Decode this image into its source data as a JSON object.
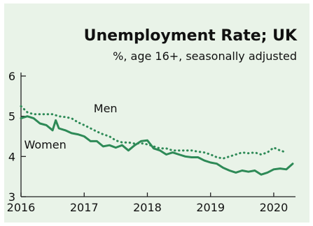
{
  "chart_data": {
    "type": "line",
    "title": "Unemployment Rate; UK",
    "subtitle": "%, age 16+, seasonally adjusted",
    "xlabel": "",
    "ylabel": "",
    "xlim": [
      2016,
      2020.3
    ],
    "ylim": [
      3,
      6
    ],
    "x_ticks": [
      2016,
      2017,
      2018,
      2019,
      2020
    ],
    "y_ticks": [
      3,
      4,
      5,
      6
    ],
    "grid": false,
    "legend": "inline labels",
    "series": [
      {
        "name": "Men",
        "style": "dotted",
        "color": "#2e8a57",
        "x": [
          2016.0,
          2016.1,
          2016.2,
          2016.3,
          2016.4,
          2016.5,
          2016.6,
          2016.7,
          2016.8,
          2016.9,
          2017.0,
          2017.1,
          2017.2,
          2017.3,
          2017.4,
          2017.5,
          2017.6,
          2017.7,
          2017.8,
          2017.9,
          2018.0,
          2018.1,
          2018.2,
          2018.3,
          2018.4,
          2018.5,
          2018.6,
          2018.7,
          2018.8,
          2018.9,
          2019.0,
          2019.1,
          2019.2,
          2019.3,
          2019.4,
          2019.5,
          2019.6,
          2019.7,
          2019.8,
          2019.9,
          2020.0,
          2020.1,
          2020.2
        ],
        "values": [
          5.25,
          5.1,
          5.05,
          5.05,
          5.05,
          5.05,
          5.0,
          4.98,
          4.95,
          4.85,
          4.78,
          4.7,
          4.62,
          4.55,
          4.5,
          4.4,
          4.35,
          4.35,
          4.32,
          4.33,
          4.3,
          4.25,
          4.2,
          4.2,
          4.15,
          4.15,
          4.15,
          4.15,
          4.12,
          4.1,
          4.05,
          3.98,
          3.95,
          4.0,
          4.05,
          4.1,
          4.08,
          4.1,
          4.05,
          4.1,
          4.22,
          4.15,
          4.1
        ]
      },
      {
        "name": "Women",
        "style": "solid",
        "color": "#2e8a57",
        "x": [
          2016.0,
          2016.1,
          2016.2,
          2016.3,
          2016.4,
          2016.5,
          2016.55,
          2016.6,
          2016.7,
          2016.8,
          2016.9,
          2017.0,
          2017.1,
          2017.2,
          2017.3,
          2017.4,
          2017.5,
          2017.6,
          2017.7,
          2017.8,
          2017.9,
          2018.0,
          2018.1,
          2018.2,
          2018.3,
          2018.4,
          2018.5,
          2018.6,
          2018.7,
          2018.8,
          2018.9,
          2019.0,
          2019.1,
          2019.2,
          2019.3,
          2019.4,
          2019.5,
          2019.6,
          2019.7,
          2019.8,
          2019.9,
          2020.0,
          2020.1,
          2020.2,
          2020.3
        ],
        "values": [
          4.95,
          5.0,
          4.95,
          4.82,
          4.78,
          4.65,
          4.9,
          4.7,
          4.65,
          4.58,
          4.55,
          4.5,
          4.38,
          4.38,
          4.25,
          4.28,
          4.22,
          4.28,
          4.15,
          4.28,
          4.38,
          4.4,
          4.2,
          4.15,
          4.05,
          4.1,
          4.05,
          4.0,
          3.98,
          3.98,
          3.9,
          3.85,
          3.82,
          3.72,
          3.65,
          3.6,
          3.65,
          3.62,
          3.65,
          3.55,
          3.6,
          3.68,
          3.7,
          3.68,
          3.82
        ]
      }
    ]
  }
}
